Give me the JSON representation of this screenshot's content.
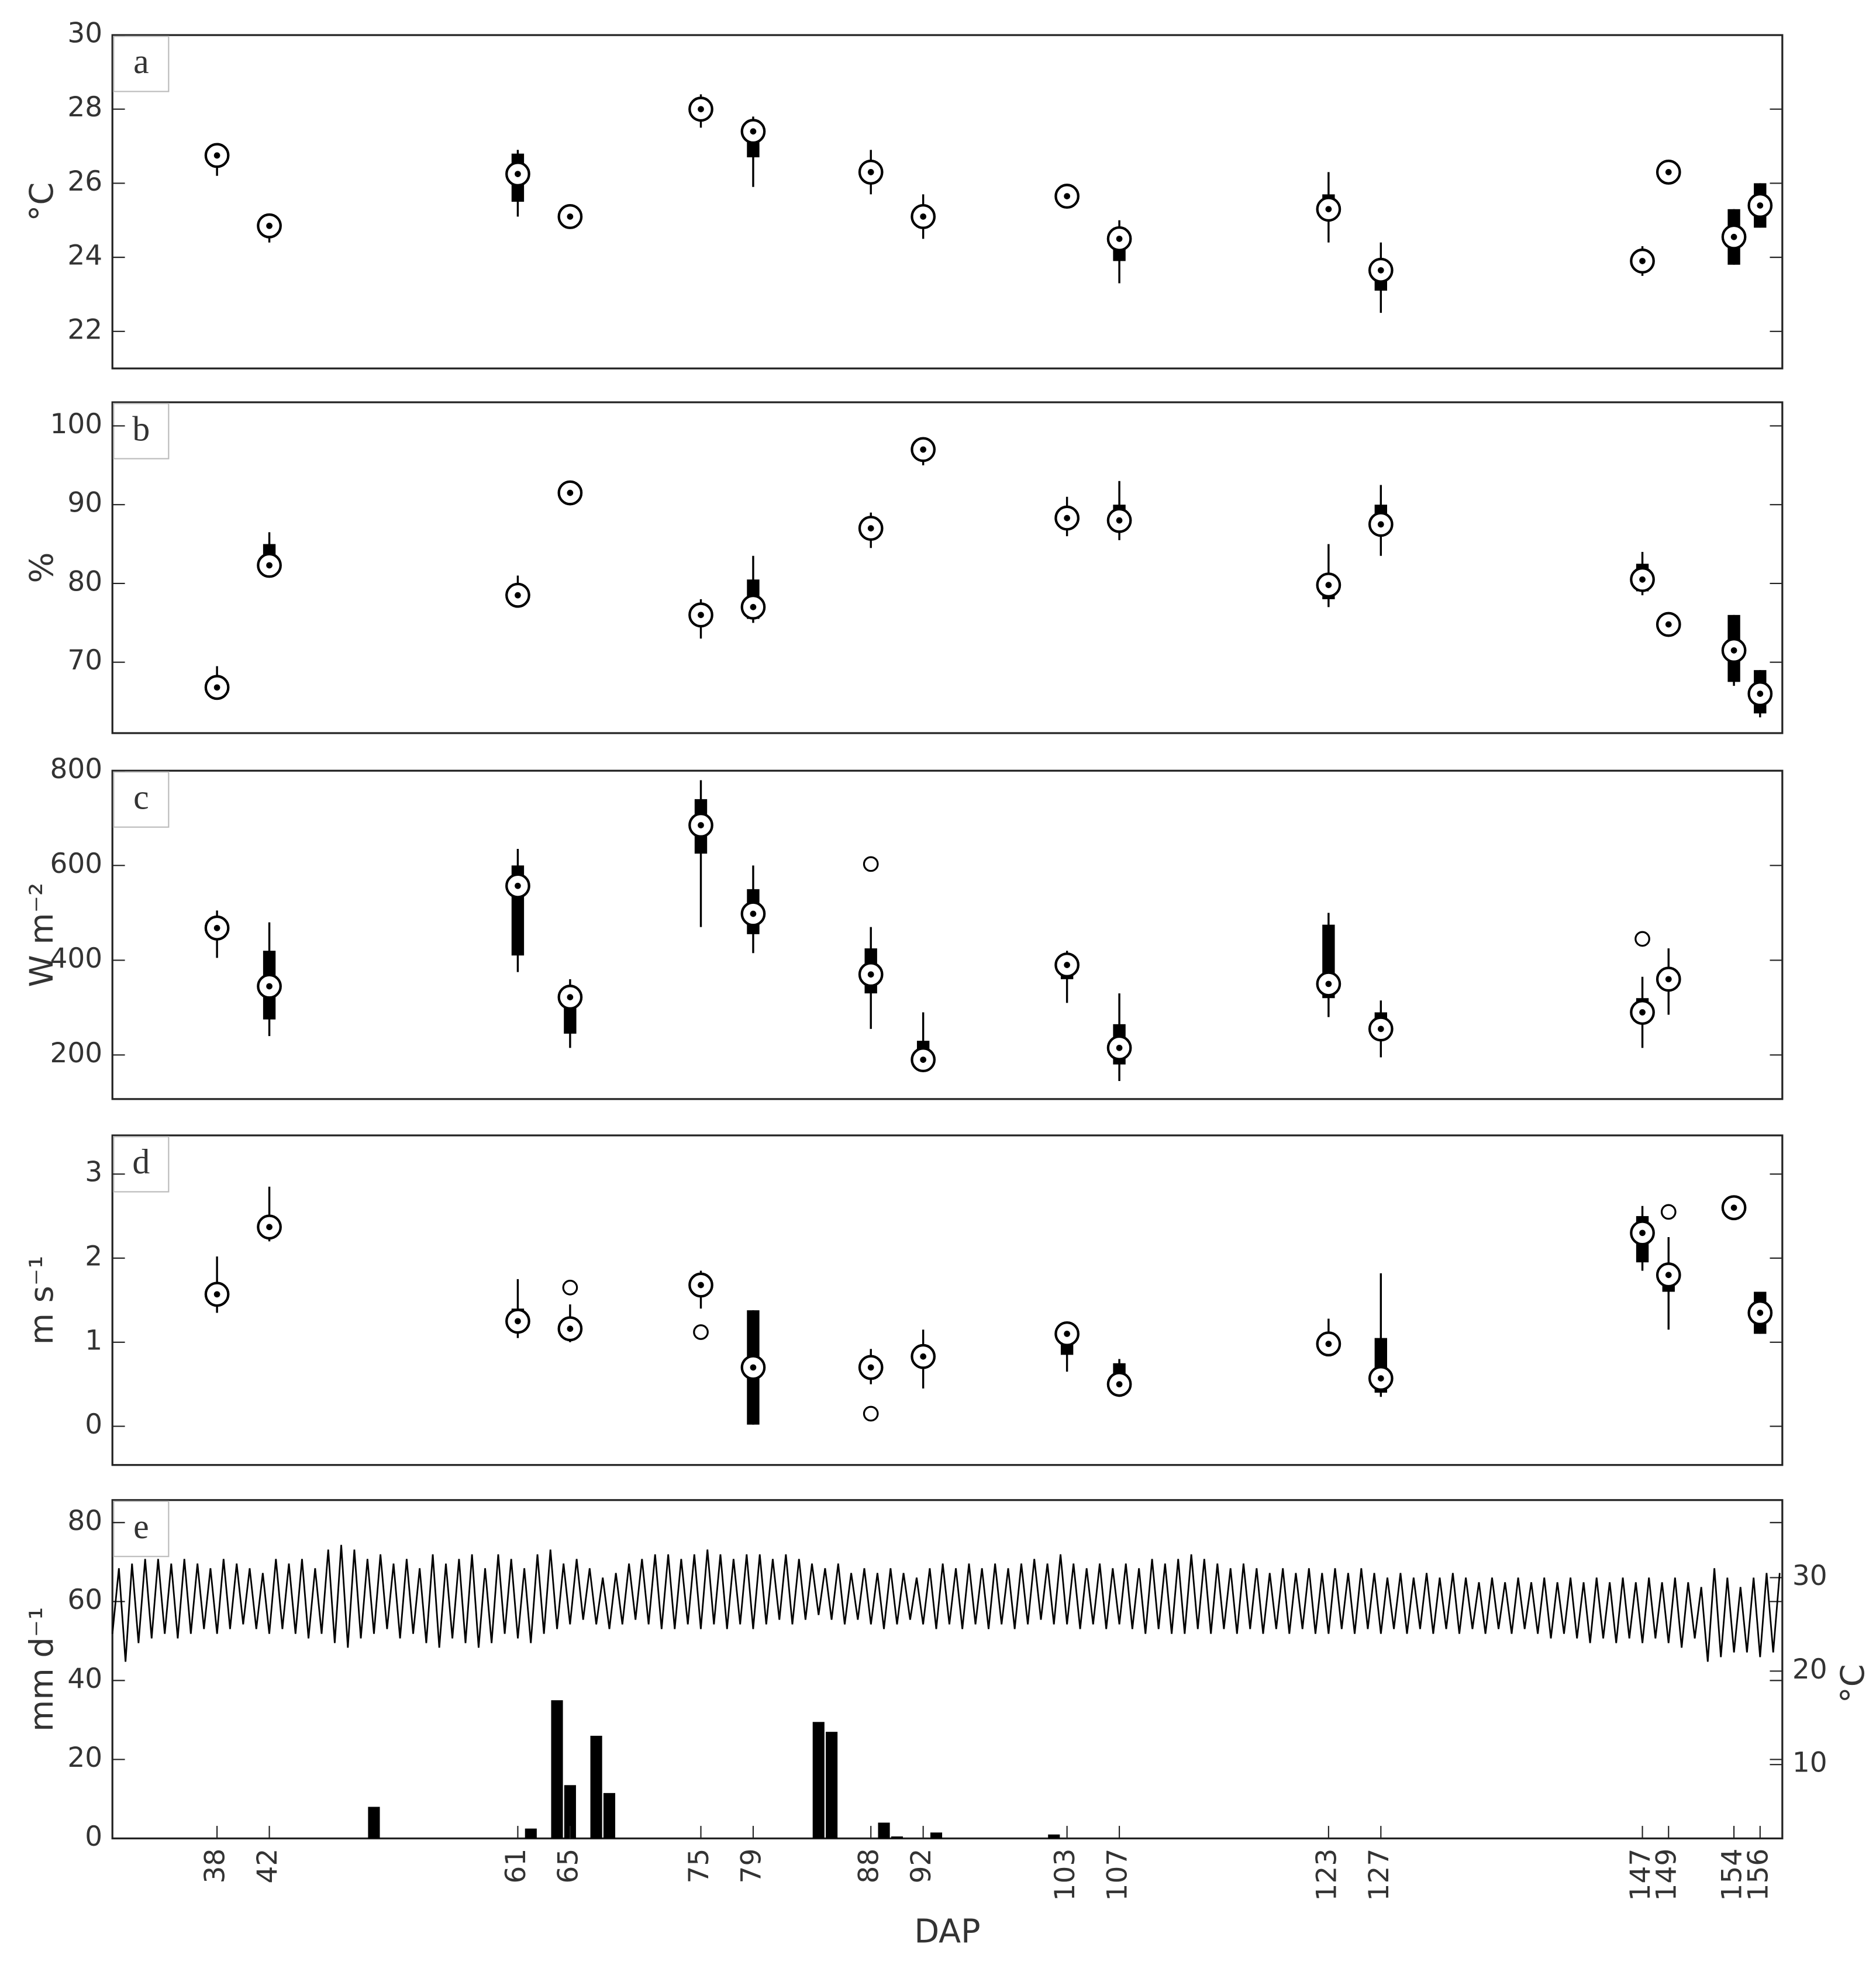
{
  "chart_data": [
    {
      "type": "box",
      "label": "a",
      "ylabel": "°C",
      "xlim": [
        30,
        157.7
      ],
      "ylim": [
        21,
        30
      ],
      "yticks": [
        22,
        24,
        26,
        28,
        30
      ],
      "color": "#000000",
      "x": [
        38,
        42,
        61,
        65,
        75,
        79,
        88,
        92,
        103,
        107,
        123,
        127,
        147,
        149,
        154,
        156
      ],
      "median": [
        26.75,
        24.85,
        26.25,
        25.1,
        28.0,
        27.4,
        26.3,
        25.1,
        25.65,
        24.5,
        25.3,
        23.65,
        23.9,
        26.3,
        24.55,
        25.4
      ],
      "q1": [
        26.7,
        24.8,
        25.5,
        25.05,
        27.95,
        26.7,
        26.2,
        25.0,
        25.6,
        23.9,
        25.2,
        23.1,
        23.8,
        26.2,
        23.8,
        24.8
      ],
      "q3": [
        26.8,
        24.9,
        26.8,
        25.15,
        28.05,
        27.5,
        26.35,
        25.2,
        25.7,
        24.8,
        25.7,
        23.8,
        24.0,
        26.4,
        25.3,
        26.0
      ],
      "whisker_low": [
        26.2,
        24.4,
        25.1,
        24.9,
        27.5,
        25.9,
        25.7,
        24.5,
        25.4,
        23.3,
        24.4,
        22.5,
        23.5,
        26.0,
        23.8,
        24.8
      ],
      "whisker_high": [
        27.0,
        25.1,
        26.9,
        25.3,
        28.4,
        27.8,
        26.9,
        25.7,
        25.9,
        25.0,
        26.3,
        24.4,
        24.3,
        26.6,
        25.3,
        26.0
      ],
      "outliers": []
    },
    {
      "type": "box",
      "label": "b",
      "ylabel": "%",
      "xlim": [
        30,
        157.7
      ],
      "ylim": [
        61,
        103
      ],
      "yticks": [
        70,
        80,
        90,
        100
      ],
      "color": "#000000",
      "x": [
        38,
        42,
        61,
        65,
        75,
        79,
        88,
        92,
        103,
        107,
        123,
        127,
        147,
        149,
        154,
        156
      ],
      "median": [
        66.8,
        82.3,
        78.5,
        91.5,
        76,
        77,
        87,
        97,
        88.3,
        88,
        79.8,
        87.5,
        80.5,
        74.8,
        71.5,
        66
      ],
      "q1": [
        66.5,
        82,
        78,
        91.2,
        75.5,
        75.5,
        86.5,
        96.5,
        87.5,
        87,
        78,
        86.5,
        79,
        74.5,
        67.5,
        63.5
      ],
      "q3": [
        67.5,
        85,
        79,
        91.8,
        76.5,
        80.5,
        87.5,
        97.5,
        89,
        90,
        80.5,
        90,
        82.5,
        75.2,
        76,
        69
      ],
      "whisker_low": [
        66,
        81,
        77.5,
        91,
        73,
        75,
        84.5,
        95,
        86,
        85.5,
        77,
        83.5,
        78.5,
        74,
        67,
        63
      ],
      "whisker_high": [
        69.5,
        86.5,
        81,
        92,
        78,
        83.5,
        89,
        98.5,
        91,
        93,
        85,
        92.5,
        84,
        75.5,
        76,
        69
      ],
      "outliers": []
    },
    {
      "type": "box",
      "label": "c",
      "ylabel": "W m⁻²",
      "xlim": [
        30,
        157.7
      ],
      "ylim": [
        107,
        800
      ],
      "yticks": [
        200,
        400,
        600,
        800
      ],
      "color": "#000000",
      "x": [
        38,
        42,
        61,
        65,
        75,
        79,
        88,
        92,
        103,
        107,
        123,
        127,
        147,
        149
      ],
      "median": [
        468,
        345,
        557,
        322,
        685,
        498,
        370,
        190,
        390,
        215,
        350,
        255,
        290,
        360
      ],
      "q1": [
        455,
        275,
        410,
        245,
        625,
        455,
        330,
        185,
        360,
        180,
        320,
        240,
        280,
        345
      ],
      "q3": [
        480,
        420,
        600,
        340,
        740,
        550,
        425,
        230,
        400,
        265,
        475,
        290,
        320,
        380
      ],
      "whisker_low": [
        405,
        240,
        375,
        215,
        470,
        415,
        255,
        180,
        310,
        145,
        280,
        195,
        215,
        285
      ],
      "whisker_high": [
        505,
        480,
        635,
        360,
        780,
        600,
        470,
        290,
        420,
        330,
        500,
        315,
        365,
        425
      ],
      "outliers": [
        {
          "x": 88,
          "y": 603
        },
        {
          "x": 147,
          "y": 445
        }
      ]
    },
    {
      "type": "box",
      "label": "d",
      "ylabel": "m s⁻¹",
      "xlim": [
        30,
        157.7
      ],
      "ylim": [
        -0.46,
        3.46
      ],
      "yticks": [
        0,
        1,
        2,
        3
      ],
      "color": "#000000",
      "x": [
        38,
        42,
        61,
        65,
        75,
        79,
        88,
        92,
        103,
        107,
        123,
        127,
        147,
        149,
        154,
        156
      ],
      "median": [
        1.57,
        2.37,
        1.25,
        1.16,
        1.68,
        0.7,
        0.7,
        0.83,
        1.1,
        0.5,
        0.98,
        0.57,
        2.3,
        1.8,
        2.6,
        1.35
      ],
      "q1": [
        1.5,
        2.3,
        1.2,
        1.1,
        1.6,
        0.02,
        0.6,
        0.8,
        0.85,
        0.45,
        0.95,
        0.4,
        1.95,
        1.6,
        2.58,
        1.1
      ],
      "q3": [
        1.65,
        2.45,
        1.4,
        1.25,
        1.75,
        1.38,
        0.75,
        0.9,
        1.15,
        0.75,
        1.05,
        1.05,
        2.5,
        1.85,
        2.62,
        1.6
      ],
      "whisker_low": [
        1.35,
        2.2,
        1.05,
        1.0,
        1.4,
        0.02,
        0.5,
        0.45,
        0.65,
        0.35,
        0.9,
        0.35,
        1.85,
        1.15,
        2.55,
        1.1
      ],
      "whisker_high": [
        2.02,
        2.85,
        1.75,
        1.45,
        1.85,
        1.38,
        0.92,
        1.15,
        1.2,
        0.8,
        1.28,
        1.82,
        2.62,
        2.25,
        2.65,
        1.6
      ],
      "outliers": [
        {
          "x": 65,
          "y": 1.65
        },
        {
          "x": 75,
          "y": 1.12
        },
        {
          "x": 88,
          "y": 0.15
        },
        {
          "x": 149,
          "y": 2.55
        }
      ]
    },
    {
      "type": "combo",
      "label": "e",
      "ylabel": "mm d⁻¹",
      "y2label": "°C",
      "xlabel": "DAP",
      "xlim": [
        30,
        157.7
      ],
      "ylim": [
        0,
        85.7
      ],
      "yticks": [
        0,
        20,
        40,
        60,
        80
      ],
      "y2lim": [
        2.1,
        38.3
      ],
      "y2ticks": [
        10,
        20,
        30
      ],
      "color": "#000000",
      "xticks": [
        38,
        42,
        61,
        65,
        75,
        79,
        88,
        92,
        103,
        107,
        123,
        127,
        147,
        149,
        154,
        156
      ],
      "bars": {
        "x": [
          50,
          62,
          64,
          65,
          67,
          68,
          84,
          85,
          89,
          90,
          93,
          102
        ],
        "values": [
          8,
          2.5,
          35,
          13.5,
          26,
          11.5,
          29.5,
          27,
          4,
          0.5,
          1.5,
          1
        ]
      },
      "line": {
        "axis": "y2",
        "x": [
          30,
          30.5,
          31,
          31.5,
          32,
          32.5,
          33,
          33.5,
          34,
          34.5,
          35,
          35.5,
          36,
          36.5,
          37,
          37.5,
          38,
          38.5,
          39,
          39.5,
          40,
          40.5,
          41,
          41.5,
          42,
          42.5,
          43,
          43.5,
          44,
          44.5,
          45,
          45.5,
          46,
          46.5,
          47,
          47.5,
          48,
          48.5,
          49,
          49.5,
          50,
          50.5,
          51,
          51.5,
          52,
          52.5,
          53,
          53.5,
          54,
          54.5,
          55,
          55.5,
          56,
          56.5,
          57,
          57.5,
          58,
          58.5,
          59,
          59.5,
          60,
          60.5,
          61,
          61.5,
          62,
          62.5,
          63,
          63.5,
          64,
          64.5,
          65,
          65.5,
          66,
          66.5,
          67,
          67.5,
          68,
          68.5,
          69,
          69.5,
          70,
          70.5,
          71,
          71.5,
          72,
          72.5,
          73,
          73.5,
          74,
          74.5,
          75,
          75.5,
          76,
          76.5,
          77,
          77.5,
          78,
          78.5,
          79,
          79.5,
          80,
          80.5,
          81,
          81.5,
          82,
          82.5,
          83,
          83.5,
          84,
          84.5,
          85,
          85.5,
          86,
          86.5,
          87,
          87.5,
          88,
          88.5,
          89,
          89.5,
          90,
          90.5,
          91,
          91.5,
          92,
          92.5,
          93,
          93.5,
          94,
          94.5,
          95,
          95.5,
          96,
          96.5,
          97,
          97.5,
          98,
          98.5,
          99,
          99.5,
          100,
          100.5,
          101,
          101.5,
          102,
          102.5,
          103,
          103.5,
          104,
          104.5,
          105,
          105.5,
          106,
          106.5,
          107,
          107.5,
          108,
          108.5,
          109,
          109.5,
          110,
          110.5,
          111,
          111.5,
          112,
          112.5,
          113,
          113.5,
          114,
          114.5,
          115,
          115.5,
          116,
          116.5,
          117,
          117.5,
          118,
          118.5,
          119,
          119.5,
          120,
          120.5,
          121,
          121.5,
          122,
          122.5,
          123,
          123.5,
          124,
          124.5,
          125,
          125.5,
          126,
          126.5,
          127,
          127.5,
          128,
          128.5,
          129,
          129.5,
          130,
          130.5,
          131,
          131.5,
          132,
          132.5,
          133,
          133.5,
          134,
          134.5,
          135,
          135.5,
          136,
          136.5,
          137,
          137.5,
          138,
          138.5,
          139,
          139.5,
          140,
          140.5,
          141,
          141.5,
          142,
          142.5,
          143,
          143.5,
          144,
          144.5,
          145,
          145.5,
          146,
          146.5,
          147,
          147.5,
          148,
          148.5,
          149,
          149.5,
          150,
          150.5,
          151,
          151.5,
          152,
          152.5,
          153,
          153.5,
          154,
          154.5,
          155,
          155.5,
          156,
          156.5,
          157,
          157.5
        ],
        "values": [
          24,
          31,
          21,
          31.5,
          23,
          32,
          23.5,
          32,
          24,
          31.5,
          23.5,
          32,
          24,
          31.5,
          24.5,
          31,
          24,
          32,
          24.5,
          31.5,
          25,
          31,
          24.5,
          30.5,
          24,
          32,
          24.5,
          31.5,
          24,
          32,
          23.5,
          31,
          24,
          33,
          23,
          33.5,
          22.5,
          33,
          23.5,
          32,
          24,
          32.5,
          24.5,
          31.5,
          23.5,
          32,
          24,
          31,
          23,
          32.5,
          22.5,
          31.5,
          23.5,
          32,
          23,
          32.5,
          22.5,
          31,
          23,
          32.5,
          24,
          32,
          23.5,
          31,
          23,
          32.5,
          24,
          33,
          24.5,
          31.5,
          25,
          32,
          25.5,
          31,
          25,
          30,
          24.5,
          30.5,
          25,
          31.5,
          25.5,
          32,
          25,
          32.5,
          24.5,
          32.5,
          24.5,
          32,
          25,
          32.5,
          24.5,
          33,
          25,
          32.5,
          24.5,
          32,
          25,
          32.5,
          24.5,
          32.5,
          25,
          32,
          25.5,
          32.5,
          25,
          32,
          25.5,
          31.5,
          26,
          31,
          25.5,
          31.5,
          25,
          30.5,
          25.5,
          31,
          25,
          30.5,
          24.5,
          31,
          25,
          30.5,
          25.5,
          30,
          25,
          31,
          24.5,
          31.5,
          25,
          31,
          24.5,
          31.5,
          25,
          31,
          24.5,
          31.5,
          25,
          31,
          24.5,
          31.5,
          25,
          32,
          25.5,
          31.5,
          25,
          32.5,
          25,
          31.5,
          24.5,
          31,
          25,
          31.5,
          24.5,
          31,
          25,
          31.5,
          24.5,
          31,
          24,
          32,
          24.5,
          31.5,
          24,
          32,
          24,
          32.5,
          24.5,
          32,
          24,
          31.5,
          24.5,
          31,
          24,
          31.5,
          24.5,
          31,
          24,
          30.5,
          24.5,
          31,
          24,
          30.5,
          24.5,
          31,
          24,
          30.5,
          24,
          31,
          24.5,
          30.5,
          24,
          31,
          24.5,
          30.5,
          24,
          30,
          24.5,
          30.5,
          24,
          30,
          24.5,
          30.5,
          24,
          30,
          24.5,
          30.5,
          24,
          30,
          24.5,
          29.5,
          24,
          30,
          24.5,
          29.5,
          24,
          30,
          24.5,
          29.5,
          24,
          30,
          23.5,
          29.5,
          24,
          30,
          23.5,
          29.5,
          23,
          30,
          23.5,
          29.5,
          23,
          30,
          23.5,
          29.5,
          23,
          30,
          23.5,
          29.5,
          23,
          30,
          22.5,
          29.5,
          23.5,
          29,
          21,
          31,
          21.5,
          30,
          22,
          29,
          22,
          30,
          21.5,
          30.5,
          22,
          30.5
        ]
      }
    }
  ]
}
